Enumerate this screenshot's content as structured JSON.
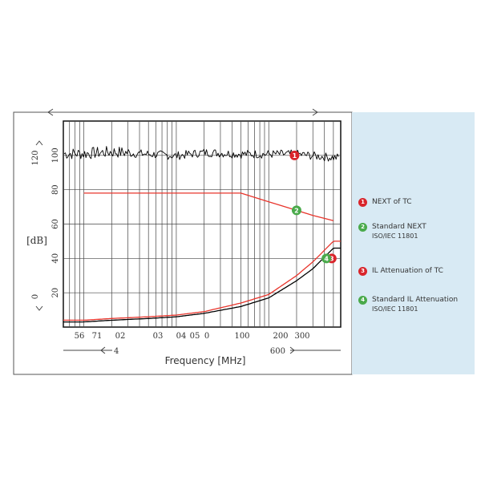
{
  "chart_data": {
    "type": "line",
    "xlabel": "Frequency [MHz]",
    "ylabel": "[dB]",
    "ylim": [
      0,
      120
    ],
    "grid": true,
    "legend_position": "right",
    "x_ticks": [
      "56",
      "71",
      "02",
      "03",
      "04",
      "05",
      "0",
      "100",
      "200",
      "300"
    ],
    "x_extra_labels": [
      "4",
      "600"
    ],
    "y_ticks": [
      "100",
      "80",
      "60",
      "40",
      "20"
    ],
    "y_extra_labels": [
      "120",
      "0"
    ],
    "series": [
      {
        "name": "NEXT of TC",
        "x": [
          1,
          2,
          5,
          10,
          20,
          50,
          100,
          200,
          300,
          500
        ],
        "y": [
          100,
          101,
          100,
          99,
          101,
          100,
          100,
          100,
          99,
          98
        ]
      },
      {
        "name": "Standard NEXT",
        "subtitle": "ISO/IEC 11801",
        "x": [
          1,
          2,
          5,
          10,
          20,
          50,
          100,
          200,
          300,
          500
        ],
        "y": [
          78,
          78,
          78,
          78,
          78,
          78,
          73,
          68,
          65,
          62
        ]
      },
      {
        "name": "IL Attenuation of TC",
        "x": [
          1,
          2,
          5,
          10,
          20,
          50,
          100,
          200,
          300,
          500
        ],
        "y": [
          3,
          4,
          5,
          6,
          8,
          12,
          17,
          27,
          34,
          46
        ]
      },
      {
        "name": "Standard IL Attenuation",
        "subtitle": "ISO/IEC 11801",
        "x": [
          1,
          2,
          5,
          10,
          20,
          50,
          100,
          200,
          300,
          500
        ],
        "y": [
          4,
          5,
          6,
          7,
          9,
          14,
          19,
          30,
          38,
          50
        ]
      }
    ],
    "markers": [
      {
        "label": "1",
        "series": "NEXT of TC",
        "color": "#d9252b",
        "x": 190,
        "y": 100
      },
      {
        "label": "2",
        "series": "Standard NEXT",
        "color": "#4aaa4b",
        "x": 200,
        "y": 68
      },
      {
        "label": "3",
        "series": "IL Attenuation of TC",
        "color": "#d9252b",
        "x": 480,
        "y": 40
      },
      {
        "label": "4",
        "series": "Standard IL Attenuation",
        "color": "#4aaa4b",
        "x": 420,
        "y": 40
      }
    ],
    "colors": {
      "next_tc": "#000000",
      "standard_next": "#e8342b",
      "il_tc": "#000000",
      "standard_il": "#e8342b",
      "red_badge": "#d9252b",
      "green_badge": "#4aaa4b",
      "legend_bg": "#d8eaf4"
    }
  }
}
